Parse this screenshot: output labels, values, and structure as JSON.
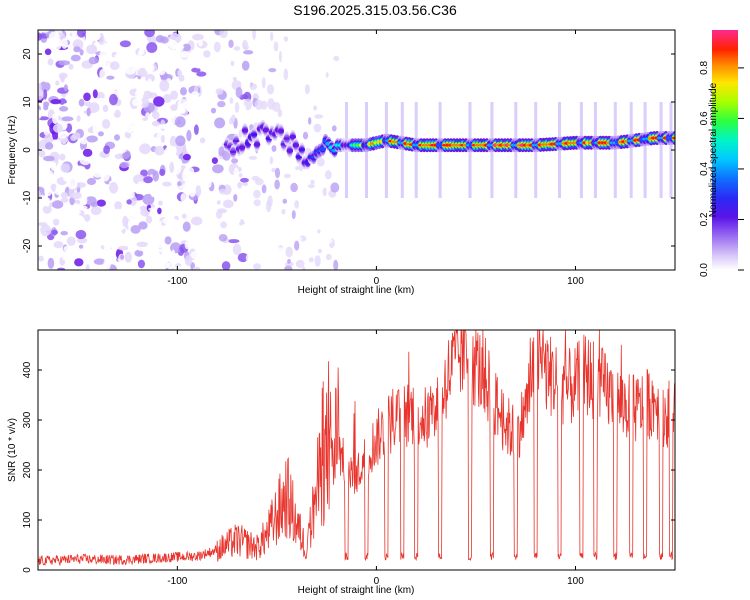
{
  "title": "S196.2025.315.03.56.C36",
  "colormap": [
    "#ffffff",
    "#e4d8fa",
    "#b99ef5",
    "#8a55ee",
    "#6a16e6",
    "#3a18f0",
    "#1f4cff",
    "#00b4ff",
    "#00f0d8",
    "#33ff44",
    "#c8ff00",
    "#ffd200",
    "#ff7800",
    "#ff1400",
    "#ff2a8c"
  ],
  "chart_data": [
    {
      "type": "heatmap",
      "title": "",
      "xlabel": "Height of straight line (km)",
      "ylabel": "Frequency (Hz)",
      "xlim": [
        -170,
        150
      ],
      "ylim": [
        -25,
        25
      ],
      "xticks": [
        -100,
        0,
        100
      ],
      "yticks": [
        -20,
        -10,
        0,
        10,
        20
      ],
      "ytick_labels": [
        "-20",
        "-10",
        "0",
        "10",
        "20"
      ],
      "colorbar": {
        "label": "Normalized spectral amplitude",
        "range": [
          0,
          0.95
        ],
        "ticks": [
          0.0,
          0.2,
          0.4,
          0.6,
          0.8
        ],
        "tick_labels": [
          "0.0",
          "0.2",
          "0.4",
          "0.6",
          "0.8"
        ]
      },
      "ridge": {
        "x": [
          -75,
          -65,
          -55,
          -45,
          -35,
          -25,
          -15,
          -5,
          5,
          20,
          40,
          60,
          80,
          100,
          120,
          140,
          150
        ],
        "freq": [
          0,
          3,
          3,
          2,
          -2,
          1,
          1,
          1,
          2,
          1,
          1,
          1,
          1,
          1.5,
          1.5,
          2.5,
          2.5
        ],
        "amplitude": [
          0.3,
          0.35,
          0.35,
          0.3,
          0.35,
          0.5,
          0.6,
          0.75,
          0.85,
          0.9,
          0.9,
          0.92,
          0.9,
          0.85,
          0.88,
          0.9,
          0.85
        ]
      }
    },
    {
      "type": "line",
      "title": "",
      "xlabel": "Height of straight line (km)",
      "ylabel": "SNR (10 * v/v)",
      "xlim": [
        -170,
        150
      ],
      "ylim": [
        0,
        480
      ],
      "xticks": [
        -100,
        0,
        100
      ],
      "yticks": [
        0,
        100,
        200,
        300,
        400
      ],
      "series": [
        {
          "name": "SNR",
          "color": "#e8342c",
          "x": [
            -170,
            -150,
            -130,
            -110,
            -90,
            -80,
            -70,
            -60,
            -55,
            -50,
            -45,
            -40,
            -35,
            -30,
            -25,
            -20,
            -15,
            -10,
            -5,
            0,
            5,
            10,
            15,
            20,
            25,
            30,
            35,
            40,
            45,
            50,
            55,
            60,
            65,
            70,
            75,
            80,
            85,
            90,
            95,
            100,
            105,
            110,
            115,
            120,
            125,
            130,
            135,
            140,
            145,
            150
          ],
          "values": [
            18,
            22,
            20,
            24,
            28,
            40,
            60,
            45,
            70,
            110,
            150,
            90,
            40,
            160,
            230,
            250,
            200,
            190,
            230,
            260,
            290,
            300,
            310,
            320,
            300,
            310,
            380,
            420,
            440,
            410,
            380,
            330,
            290,
            270,
            320,
            430,
            400,
            380,
            360,
            370,
            390,
            380,
            360,
            340,
            330,
            320,
            330,
            340,
            310,
            320
          ],
          "gaps_x": [
            -15,
            -5,
            5,
            13,
            20,
            32,
            47,
            58,
            70,
            80,
            92,
            103,
            110,
            120,
            128,
            135,
            143,
            148
          ],
          "gap_level": 20
        }
      ]
    }
  ]
}
